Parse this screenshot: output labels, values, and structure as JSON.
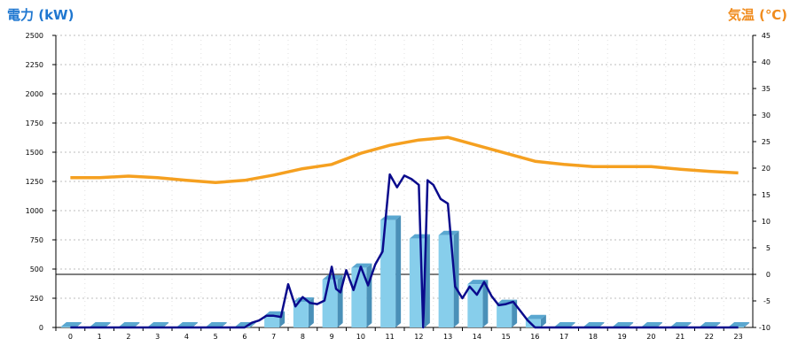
{
  "chart_data": {
    "type": "bar",
    "axis_left_label": "電力 (kW)",
    "axis_right_label": "気温 (℃)",
    "x_ticks": [
      "0",
      "1",
      "2",
      "3",
      "4",
      "5",
      "6",
      "7",
      "8",
      "9",
      "10",
      "11",
      "12",
      "13",
      "14",
      "15",
      "16",
      "17",
      "18",
      "19",
      "20",
      "21",
      "22",
      "23"
    ],
    "y_left_ticks": [
      "0",
      "250",
      "500",
      "750",
      "1000",
      "1250",
      "1500",
      "1750",
      "2000",
      "2250",
      "2500"
    ],
    "y_right_ticks": [
      "-10",
      "-5",
      "0",
      "5",
      "10",
      "15",
      "20",
      "25",
      "30",
      "35",
      "40",
      "45"
    ],
    "ylim_left": [
      0,
      2500
    ],
    "ylim_right": [
      -10,
      45
    ],
    "grid": true,
    "colors": {
      "bar": "#87ceeb",
      "bar_side": "#4a90b8",
      "power_line": "#0a0a8c",
      "temp_line": "#f5a020",
      "left_axis": "#1f77d0",
      "right_axis": "#f08c1e"
    },
    "series": [
      {
        "type": "bar",
        "axis": "left",
        "x": [
          0,
          1,
          2,
          3,
          4,
          5,
          6,
          7,
          8,
          9,
          10,
          11,
          12,
          13,
          14,
          15,
          16,
          17,
          18,
          19,
          20,
          21,
          22,
          23
        ],
        "values": [
          0,
          0,
          0,
          0,
          0,
          0,
          0,
          100,
          220,
          410,
          510,
          920,
          760,
          790,
          370,
          200,
          70,
          0,
          0,
          0,
          0,
          0,
          0,
          0
        ]
      },
      {
        "type": "line",
        "axis": "left",
        "x": [
          0,
          1,
          2,
          3,
          4,
          5,
          6,
          6.25,
          6.5,
          6.75,
          7,
          7.25,
          7.5,
          7.75,
          8,
          8.25,
          8.5,
          8.75,
          9,
          9.15,
          9.3,
          9.5,
          9.75,
          10,
          10.25,
          10.5,
          10.75,
          11,
          11.25,
          11.5,
          11.75,
          12,
          12.15,
          12.3,
          12.5,
          12.75,
          13,
          13.25,
          13.5,
          13.75,
          14,
          14.25,
          14.5,
          14.75,
          15,
          15.25,
          15.5,
          15.75,
          16,
          17,
          18,
          19,
          20,
          21,
          22,
          23
        ],
        "values": [
          0,
          0,
          0,
          0,
          0,
          0,
          0,
          40,
          60,
          100,
          100,
          90,
          370,
          180,
          260,
          210,
          200,
          230,
          520,
          330,
          300,
          490,
          320,
          520,
          360,
          540,
          650,
          1310,
          1200,
          1300,
          1270,
          1220,
          0,
          1260,
          1220,
          1100,
          1060,
          350,
          250,
          350,
          280,
          390,
          270,
          190,
          200,
          220,
          140,
          60,
          0,
          0,
          0,
          0,
          0,
          0,
          0,
          0
        ]
      },
      {
        "type": "line",
        "axis": "right",
        "x": [
          0,
          1,
          2,
          3,
          4,
          5,
          6,
          7,
          8,
          9,
          10,
          11,
          12,
          13,
          14,
          15,
          16,
          17,
          18,
          19,
          20,
          21,
          22,
          23
        ],
        "values": [
          18.2,
          18.2,
          18.5,
          18.2,
          17.7,
          17.3,
          17.7,
          18.7,
          19.9,
          20.7,
          22.8,
          24.3,
          25.3,
          25.8,
          24.3,
          22.8,
          21.3,
          20.7,
          20.3,
          20.3,
          20.3,
          19.8,
          19.4,
          19.1
        ]
      }
    ]
  }
}
